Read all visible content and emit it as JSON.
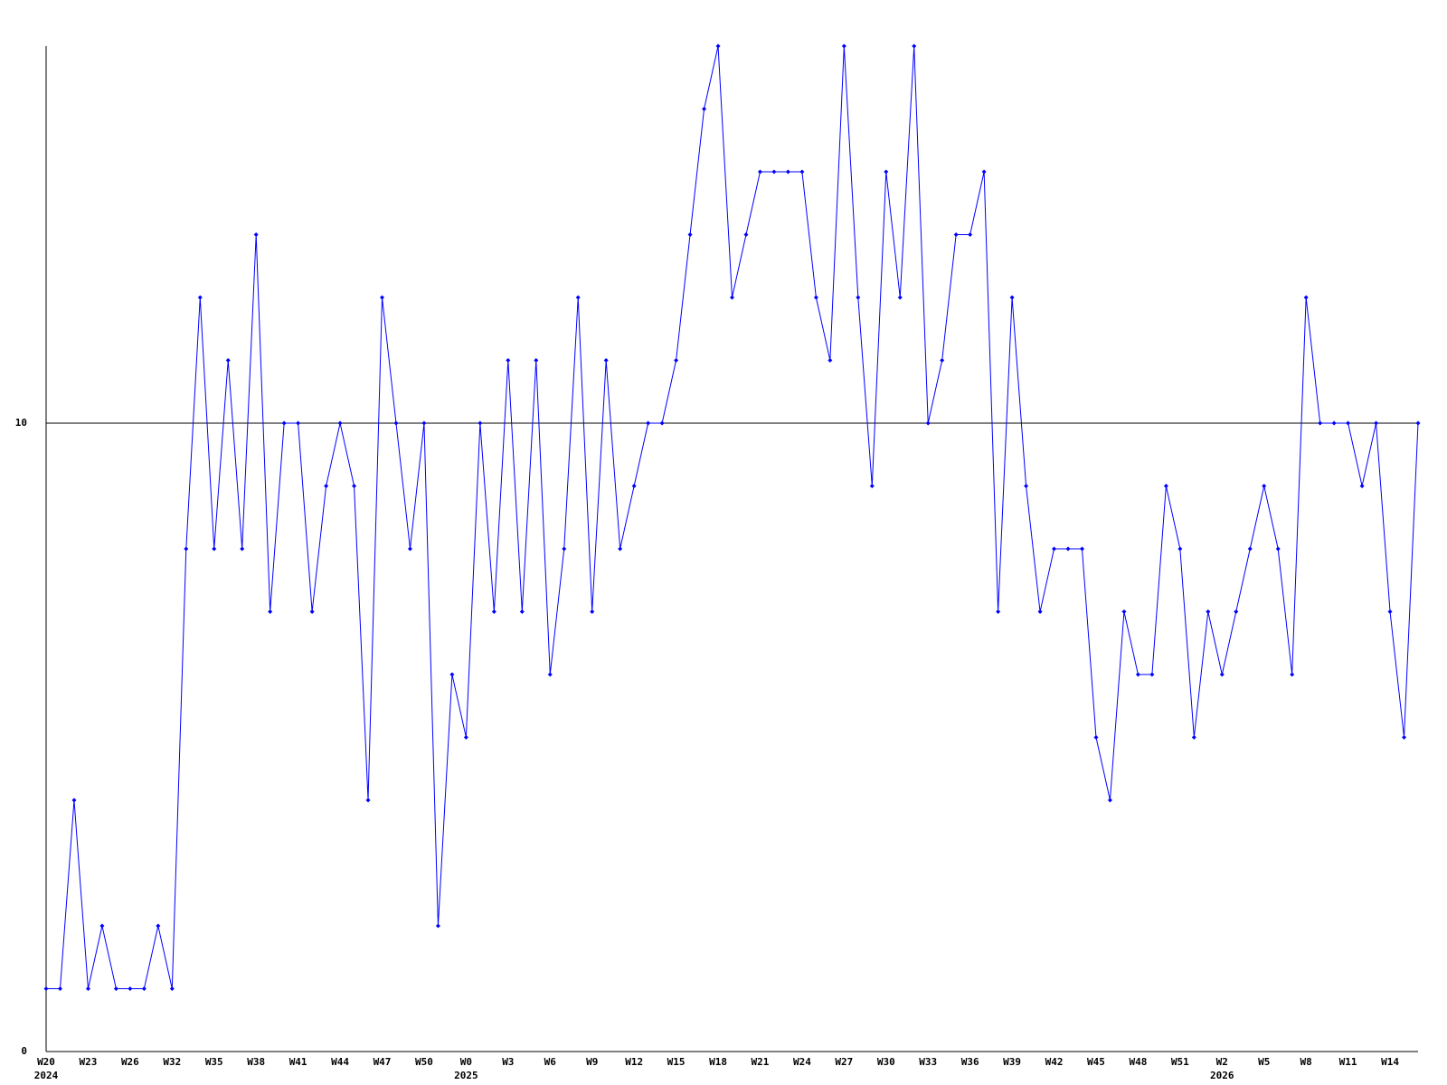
{
  "chart_data": {
    "type": "line",
    "categories": [
      "W20",
      null,
      null,
      "W23",
      null,
      null,
      "W26",
      null,
      null,
      "W32",
      null,
      null,
      "W35",
      null,
      null,
      "W38",
      null,
      null,
      "W41",
      null,
      null,
      "W44",
      null,
      null,
      "W47",
      null,
      null,
      "W50",
      null,
      null,
      "W0",
      null,
      null,
      "W3",
      null,
      null,
      "W6",
      null,
      null,
      "W9",
      null,
      null,
      "W12",
      null,
      null,
      "W15",
      null,
      null,
      "W18",
      null,
      null,
      "W21",
      null,
      null,
      "W24",
      null,
      null,
      "W27",
      null,
      null,
      "W30",
      null,
      null,
      "W33",
      null,
      null,
      "W36",
      null,
      null,
      "W39",
      null,
      null,
      "W42",
      null,
      null,
      "W45",
      null,
      null,
      "W48",
      null,
      null,
      "W51",
      null,
      null,
      "W2",
      null,
      null,
      "W5",
      null,
      null,
      "W8",
      null,
      null,
      "W11",
      null,
      null,
      "W14",
      null,
      null
    ],
    "x_year_labels": [
      "2024",
      null,
      null,
      null,
      null,
      null,
      null,
      null,
      null,
      null,
      null,
      null,
      null,
      null,
      null,
      null,
      null,
      null,
      null,
      null,
      null,
      null,
      null,
      null,
      null,
      null,
      null,
      null,
      null,
      null,
      "2025",
      null,
      null,
      null,
      null,
      null,
      null,
      null,
      null,
      null,
      null,
      null,
      null,
      null,
      null,
      null,
      null,
      null,
      null,
      null,
      null,
      null,
      null,
      null,
      null,
      null,
      null,
      null,
      null,
      null,
      null,
      null,
      null,
      null,
      null,
      null,
      null,
      null,
      null,
      null,
      null,
      null,
      null,
      null,
      null,
      null,
      null,
      null,
      null,
      null,
      null,
      null,
      null,
      null,
      "2026",
      null,
      null,
      null,
      null,
      null,
      null,
      null,
      null,
      null,
      null,
      null,
      null,
      null,
      null
    ],
    "values": [
      1,
      1,
      4,
      1,
      2,
      1,
      1,
      1,
      2,
      1,
      8,
      12,
      8,
      11,
      8,
      13,
      7,
      10,
      10,
      7,
      9,
      10,
      9,
      4,
      12,
      10,
      8,
      10,
      2,
      6,
      5,
      10,
      7,
      11,
      7,
      11,
      6,
      8,
      12,
      7,
      11,
      8,
      9,
      10,
      10,
      11,
      13,
      15,
      16,
      12,
      13,
      14,
      14,
      14,
      14,
      12,
      11,
      16,
      12,
      9,
      14,
      12,
      16,
      10,
      11,
      13,
      13,
      14,
      7,
      12,
      9,
      7,
      8,
      8,
      8,
      5,
      4,
      7,
      6,
      6,
      9,
      8,
      5,
      7,
      6,
      7,
      8,
      9,
      8,
      6,
      12,
      10,
      10,
      10,
      9,
      10,
      7,
      5,
      10
    ],
    "color": "#0000ff",
    "ylim": [
      0,
      16
    ],
    "yticks": [
      0,
      10
    ],
    "grid": true
  }
}
